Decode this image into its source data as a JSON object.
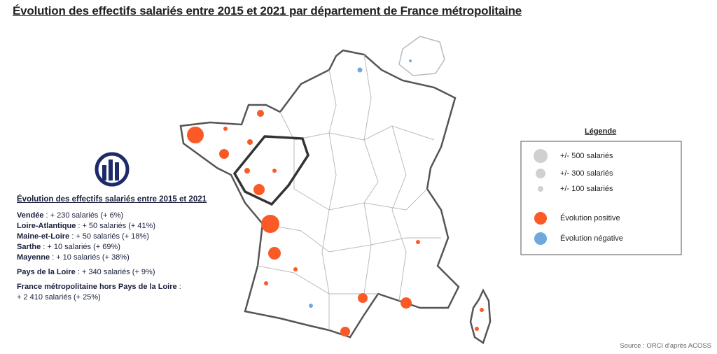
{
  "header": {
    "title": "Évolution des effectifs salariés entre 2015 et 2021 par département de France métropolitaine"
  },
  "panel": {
    "heading": "Évolution des effectifs salariés entre 2015 et 2021",
    "departments": [
      {
        "name": "Vendée",
        "detail": ": + 230 salariés (+ 6%)"
      },
      {
        "name": "Loire-Atlantique",
        "detail": ": + 50 salariés (+ 41%)"
      },
      {
        "name": "Maine-et-Loire",
        "detail": ": + 50 salariés (+ 18%)"
      },
      {
        "name": "Sarthe",
        "detail": ": + 10 salariés (+ 69%)"
      },
      {
        "name": "Mayenne",
        "detail": ": + 10 salariés (+ 38%)"
      }
    ],
    "region": {
      "name": "Pays de la Loire",
      "detail": ": + 340 salariés (+ 9%)"
    },
    "france": {
      "name": "France métropolitaine hors Pays de la Loire",
      "detail": ":",
      "detail2": "+ 2 410 salariés (+ 25%)"
    }
  },
  "legend": {
    "title": "Légende",
    "sizes": [
      "+/- 500 salariés",
      "+/- 300 salariés",
      "+/- 100 salariés"
    ],
    "positive": "Évolution positive",
    "negative": "Évolution négative"
  },
  "footer": {
    "source": "Source : ORCI d'après ACOSS"
  }
}
